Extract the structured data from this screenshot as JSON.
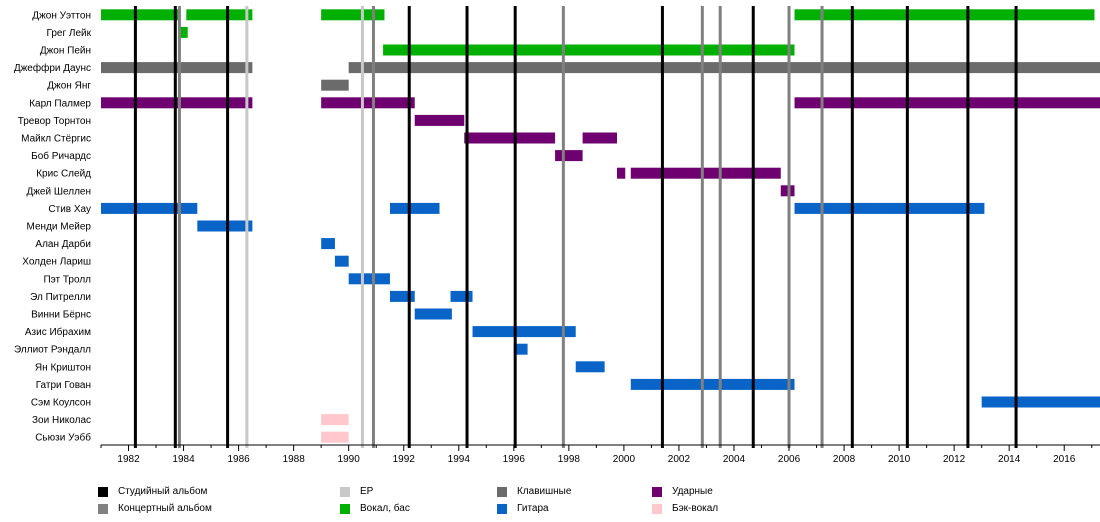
{
  "chart_data": {
    "type": "timeline",
    "x_range": [
      1981.0,
      2017.3
    ],
    "ticks": [
      1982,
      1984,
      1986,
      1988,
      1990,
      1992,
      1994,
      1996,
      1998,
      2000,
      2002,
      2004,
      2006,
      2008,
      2010,
      2012,
      2014,
      2016
    ],
    "colors": {
      "studio": "#000000",
      "live": "#808080",
      "ep": "#c8c8c8",
      "vocals": "#00b000",
      "keyboards": "#6b6b6b",
      "drums": "#6e0070",
      "guitar": "#0a64c8",
      "backing": "#ffc8cc"
    },
    "events": [
      {
        "type": "studio",
        "year": 1982.25
      },
      {
        "type": "studio",
        "year": 1983.7
      },
      {
        "type": "studio",
        "year": 1985.6
      },
      {
        "type": "studio",
        "year": 1992.2
      },
      {
        "type": "studio",
        "year": 1994.3
      },
      {
        "type": "studio",
        "year": 1996.05
      },
      {
        "type": "studio",
        "year": 2001.4
      },
      {
        "type": "studio",
        "year": 2004.7
      },
      {
        "type": "studio",
        "year": 2008.3
      },
      {
        "type": "studio",
        "year": 2010.3
      },
      {
        "type": "studio",
        "year": 2012.5
      },
      {
        "type": "studio",
        "year": 2014.25
      },
      {
        "type": "live",
        "year": 1983.85
      },
      {
        "type": "live",
        "year": 1990.9
      },
      {
        "type": "live",
        "year": 1997.8
      },
      {
        "type": "live",
        "year": 2002.85
      },
      {
        "type": "live",
        "year": 2003.5
      },
      {
        "type": "live",
        "year": 2006.0
      },
      {
        "type": "live",
        "year": 2007.2
      },
      {
        "type": "ep",
        "year": 1986.3
      },
      {
        "type": "ep",
        "year": 1990.5
      }
    ],
    "members": [
      {
        "name": "Джон Уэттон",
        "bars": [
          {
            "role": "vocals",
            "start": 1981.0,
            "end": 1983.8
          },
          {
            "role": "vocals",
            "start": 1984.1,
            "end": 1986.5
          },
          {
            "role": "vocals",
            "start": 1989.0,
            "end": 1991.3
          },
          {
            "role": "vocals",
            "start": 2006.2,
            "end": 2017.1
          }
        ]
      },
      {
        "name": "Грег Лейк",
        "bars": [
          {
            "role": "vocals",
            "start": 1983.85,
            "end": 1984.15
          }
        ]
      },
      {
        "name": "Джон Пейн",
        "bars": [
          {
            "role": "vocals",
            "start": 1991.25,
            "end": 2006.2
          }
        ]
      },
      {
        "name": "Джеффри Даунс",
        "bars": [
          {
            "role": "keyboards",
            "start": 1981.0,
            "end": 1986.5
          },
          {
            "role": "keyboards",
            "start": 1990.0,
            "end": 2017.3
          }
        ]
      },
      {
        "name": "Джон Янг",
        "bars": [
          {
            "role": "keyboards",
            "start": 1989.0,
            "end": 1990.0
          }
        ]
      },
      {
        "name": "Карл Палмер",
        "bars": [
          {
            "role": "drums",
            "start": 1981.0,
            "end": 1986.5
          },
          {
            "role": "drums",
            "start": 1989.0,
            "end": 1992.4
          },
          {
            "role": "drums",
            "start": 2006.2,
            "end": 2017.3
          }
        ]
      },
      {
        "name": "Тревор Торнтон",
        "bars": [
          {
            "role": "drums",
            "start": 1992.4,
            "end": 1994.2
          }
        ]
      },
      {
        "name": "Майкл Стёргис",
        "bars": [
          {
            "role": "drums",
            "start": 1994.2,
            "end": 1997.5
          },
          {
            "role": "drums",
            "start": 1998.5,
            "end": 1999.75
          }
        ]
      },
      {
        "name": "Боб Ричардс",
        "bars": [
          {
            "role": "drums",
            "start": 1997.5,
            "end": 1998.5
          }
        ]
      },
      {
        "name": "Крис Слейд",
        "bars": [
          {
            "role": "drums",
            "start": 1999.75,
            "end": 2000.05
          },
          {
            "role": "drums",
            "start": 2000.25,
            "end": 2005.7
          }
        ]
      },
      {
        "name": "Джей Шеллен",
        "bars": [
          {
            "role": "drums",
            "start": 2005.7,
            "end": 2006.2
          }
        ]
      },
      {
        "name": "Стив Хау",
        "bars": [
          {
            "role": "guitar",
            "start": 1981.0,
            "end": 1984.5
          },
          {
            "role": "guitar",
            "start": 1991.5,
            "end": 1993.3
          },
          {
            "role": "guitar",
            "start": 2006.2,
            "end": 2013.1
          }
        ]
      },
      {
        "name": "Менди Мейер",
        "bars": [
          {
            "role": "guitar",
            "start": 1984.5,
            "end": 1986.5
          }
        ]
      },
      {
        "name": "Алан Дарби",
        "bars": [
          {
            "role": "guitar",
            "start": 1989.0,
            "end": 1989.5
          }
        ]
      },
      {
        "name": "Холден Лариш",
        "bars": [
          {
            "role": "guitar",
            "start": 1989.5,
            "end": 1990.0
          }
        ]
      },
      {
        "name": "Пэт Тролл",
        "bars": [
          {
            "role": "guitar",
            "start": 1990.0,
            "end": 1991.5
          }
        ]
      },
      {
        "name": "Эл Питрелли",
        "bars": [
          {
            "role": "guitar",
            "start": 1991.5,
            "end": 1992.4
          },
          {
            "role": "guitar",
            "start": 1993.7,
            "end": 1994.5
          }
        ]
      },
      {
        "name": "Винни Бёрнс",
        "bars": [
          {
            "role": "guitar",
            "start": 1992.4,
            "end": 1993.75
          }
        ]
      },
      {
        "name": "Азис Ибрахим",
        "bars": [
          {
            "role": "guitar",
            "start": 1994.5,
            "end": 1998.25
          }
        ]
      },
      {
        "name": "Эллиот Рэндалл",
        "bars": [
          {
            "role": "guitar",
            "start": 1996.0,
            "end": 1996.5
          }
        ]
      },
      {
        "name": "Ян Криштон",
        "bars": [
          {
            "role": "guitar",
            "start": 1998.25,
            "end": 1999.3
          }
        ]
      },
      {
        "name": "Гатри Гован",
        "bars": [
          {
            "role": "guitar",
            "start": 2000.25,
            "end": 2006.2
          }
        ]
      },
      {
        "name": "Сэм Коулсон",
        "bars": [
          {
            "role": "guitar",
            "start": 2013.0,
            "end": 2017.3
          }
        ]
      },
      {
        "name": "Зои Николас",
        "bars": [
          {
            "role": "backing",
            "start": 1989.0,
            "end": 1990.0
          }
        ]
      },
      {
        "name": "Сьюзи Уэбб",
        "bars": [
          {
            "role": "backing",
            "start": 1989.0,
            "end": 1990.0
          }
        ]
      }
    ],
    "legend": [
      {
        "key": "studio",
        "label": "Студийный альбом"
      },
      {
        "key": "live",
        "label": "Концертный альбом"
      },
      {
        "key": "ep",
        "label": "EP"
      },
      {
        "key": "vocals",
        "label": "Вокал, бас"
      },
      {
        "key": "keyboards",
        "label": "Клавишные"
      },
      {
        "key": "guitar",
        "label": "Гитара"
      },
      {
        "key": "drums",
        "label": "Ударные"
      },
      {
        "key": "backing",
        "label": "Бэк-вокал"
      }
    ]
  }
}
